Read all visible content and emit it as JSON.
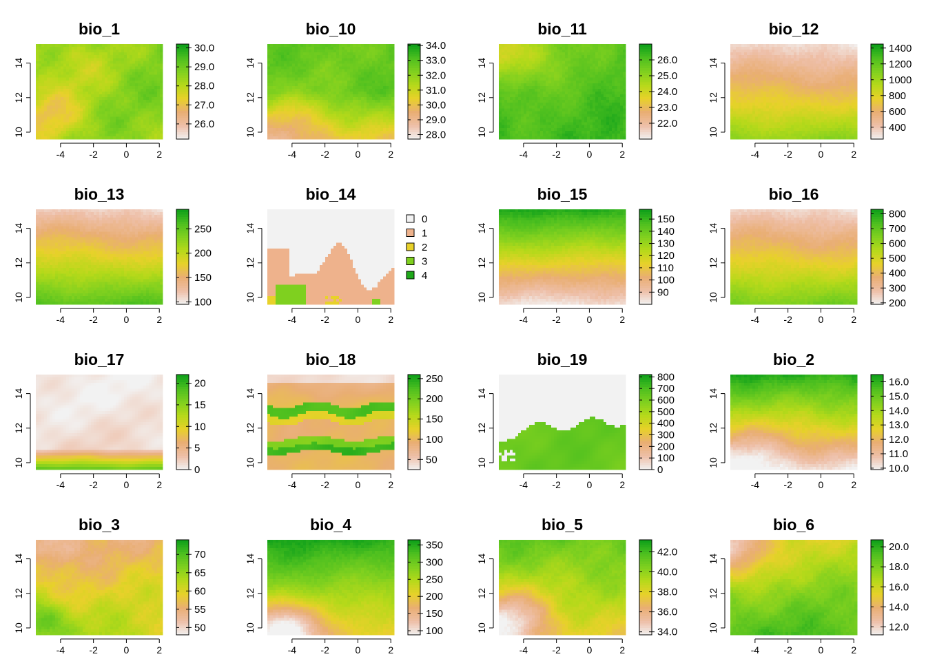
{
  "colors": {
    "ramp": [
      "#F2F2F2",
      "#EEBFA8",
      "#E9AE73",
      "#E8D12A",
      "#B5D91A",
      "#7FD01F",
      "#4CBF1F",
      "#0C9F1A"
    ],
    "frame": "#000000",
    "na": "#F2F2F2"
  },
  "chart_data": [
    {
      "name": "bio_1",
      "type": "heatmap",
      "title": "bio_1",
      "xticks": [
        "-4",
        "-2",
        "0",
        "2"
      ],
      "yticks": [
        "10",
        "12",
        "14"
      ],
      "xlim": [
        -5.5,
        2.2
      ],
      "ylim": [
        9.6,
        15.1
      ],
      "legend": {
        "kind": "continuous",
        "labels": [
          "26.0",
          "27.0",
          "28.0",
          "29.0",
          "30.0"
        ],
        "values": [
          26,
          27,
          28,
          29,
          30
        ],
        "range": [
          25.2,
          30.2
        ]
      },
      "pattern": "patchy, mostly 28-29.5, cooler west/southwest highlands"
    },
    {
      "name": "bio_10",
      "type": "heatmap",
      "title": "bio_10",
      "xticks": [
        "-4",
        "-2",
        "0",
        "2"
      ],
      "yticks": [
        "10",
        "12",
        "14"
      ],
      "xlim": [
        -5.5,
        2.2
      ],
      "ylim": [
        9.6,
        15.1
      ],
      "legend": {
        "kind": "continuous",
        "labels": [
          "28.0",
          "29.0",
          "30.0",
          "31.0",
          "32.0",
          "33.0",
          "34.0"
        ],
        "values": [
          28,
          29,
          30,
          31,
          32,
          33,
          34
        ],
        "range": [
          27.7,
          34.1
        ]
      },
      "pattern": "warm north, cooler south"
    },
    {
      "name": "bio_11",
      "type": "heatmap",
      "title": "bio_11",
      "xticks": [
        "-4",
        "-2",
        "0",
        "2"
      ],
      "yticks": [
        "10",
        "12",
        "14"
      ],
      "xlim": [
        -5.5,
        2.2
      ],
      "ylim": [
        9.6,
        15.1
      ],
      "legend": {
        "kind": "continuous",
        "labels": [
          "22.0",
          "23.0",
          "24.0",
          "25.0",
          "26.0"
        ],
        "values": [
          22,
          23,
          24,
          25,
          26
        ],
        "range": [
          21.0,
          27.0
        ]
      },
      "pattern": "mostly 25-26.5, cooler northwest"
    },
    {
      "name": "bio_12",
      "type": "heatmap",
      "title": "bio_12",
      "xticks": [
        "-4",
        "-2",
        "0",
        "2"
      ],
      "yticks": [
        "10",
        "12",
        "14"
      ],
      "xlim": [
        -5.5,
        2.2
      ],
      "ylim": [
        9.6,
        15.1
      ],
      "legend": {
        "kind": "continuous",
        "labels": [
          "400",
          "600",
          "800",
          "1000",
          "1200",
          "1400"
        ],
        "values": [
          400,
          600,
          800,
          1000,
          1200,
          1400
        ],
        "range": [
          250,
          1450
        ]
      },
      "pattern": "dry north, wet south"
    },
    {
      "name": "bio_13",
      "type": "heatmap",
      "title": "bio_13",
      "xticks": [
        "-4",
        "-2",
        "0",
        "2"
      ],
      "yticks": [
        "10",
        "12",
        "14"
      ],
      "xlim": [
        -5.5,
        2.2
      ],
      "ylim": [
        9.6,
        15.1
      ],
      "legend": {
        "kind": "continuous",
        "labels": [
          "100",
          "150",
          "200",
          "250"
        ],
        "values": [
          100,
          150,
          200,
          250
        ],
        "range": [
          95,
          290
        ]
      },
      "pattern": "low north, high south"
    },
    {
      "name": "bio_14",
      "type": "heatmap",
      "title": "bio_14",
      "xticks": [
        "-4",
        "-2",
        "0",
        "2"
      ],
      "yticks": [
        "10",
        "12",
        "14"
      ],
      "xlim": [
        -5.5,
        2.2
      ],
      "ylim": [
        9.6,
        15.1
      ],
      "legend": {
        "kind": "categorical",
        "labels": [
          "0",
          "1",
          "2",
          "3",
          "4"
        ],
        "colors": [
          "#F2F2F2",
          "#EEB28C",
          "#E8D12A",
          "#7FD01F",
          "#1FA81A"
        ]
      },
      "pattern": "mostly 0; 1 in southwest; 2-4 small patches in far south"
    },
    {
      "name": "bio_15",
      "type": "heatmap",
      "title": "bio_15",
      "xticks": [
        "-4",
        "-2",
        "0",
        "2"
      ],
      "yticks": [
        "10",
        "12",
        "14"
      ],
      "xlim": [
        -5.5,
        2.2
      ],
      "ylim": [
        9.6,
        15.1
      ],
      "legend": {
        "kind": "continuous",
        "labels": [
          "90",
          "100",
          "110",
          "120",
          "130",
          "140",
          "150"
        ],
        "values": [
          90,
          100,
          110,
          120,
          130,
          140,
          150
        ],
        "range": [
          80,
          158
        ]
      },
      "pattern": "high north, low south"
    },
    {
      "name": "bio_16",
      "type": "heatmap",
      "title": "bio_16",
      "xticks": [
        "-4",
        "-2",
        "0",
        "2"
      ],
      "yticks": [
        "10",
        "12",
        "14"
      ],
      "xlim": [
        -5.5,
        2.2
      ],
      "ylim": [
        9.6,
        15.1
      ],
      "legend": {
        "kind": "continuous",
        "labels": [
          "200",
          "300",
          "400",
          "500",
          "600",
          "700",
          "800"
        ],
        "values": [
          200,
          300,
          400,
          500,
          600,
          700,
          800
        ],
        "range": [
          190,
          830
        ]
      },
      "pattern": "low north, high south"
    },
    {
      "name": "bio_17",
      "type": "heatmap",
      "title": "bio_17",
      "xticks": [
        "-4",
        "-2",
        "0",
        "2"
      ],
      "yticks": [
        "10",
        "12",
        "14"
      ],
      "xlim": [
        -5.5,
        2.2
      ],
      "ylim": [
        9.6,
        15.1
      ],
      "legend": {
        "kind": "continuous",
        "labels": [
          "0",
          "5",
          "10",
          "15",
          "20"
        ],
        "values": [
          0,
          5,
          10,
          15,
          20
        ],
        "range": [
          0,
          22
        ]
      },
      "pattern": "near 0 north, rising to ~15-20 in far south"
    },
    {
      "name": "bio_18",
      "type": "heatmap",
      "title": "bio_18",
      "xticks": [
        "-4",
        "-2",
        "0",
        "2"
      ],
      "yticks": [
        "10",
        "12",
        "14"
      ],
      "xlim": [
        -5.5,
        2.2
      ],
      "ylim": [
        9.6,
        15.1
      ],
      "legend": {
        "kind": "continuous",
        "labels": [
          "50",
          "100",
          "150",
          "200",
          "250"
        ],
        "values": [
          50,
          100,
          150,
          200,
          250
        ],
        "range": [
          25,
          260
        ]
      },
      "pattern": "banded: low north, green band ~12.3, orange band, green band ~10.8, orange south"
    },
    {
      "name": "bio_19",
      "type": "heatmap",
      "title": "bio_19",
      "xticks": [
        "-4",
        "-2",
        "0",
        "2"
      ],
      "yticks": [
        "10",
        "12",
        "14"
      ],
      "xlim": [
        -5.5,
        2.2
      ],
      "ylim": [
        9.6,
        15.1
      ],
      "legend": {
        "kind": "continuous",
        "labels": [
          "0",
          "100",
          "200",
          "300",
          "400",
          "500",
          "600",
          "700",
          "800"
        ],
        "values": [
          0,
          100,
          200,
          300,
          400,
          500,
          600,
          700,
          800
        ],
        "range": [
          0,
          820
        ]
      },
      "pattern": "0 in north, ~600-700 south of ~12.5"
    },
    {
      "name": "bio_2",
      "type": "heatmap",
      "title": "bio_2",
      "xticks": [
        "-4",
        "-2",
        "0",
        "2"
      ],
      "yticks": [
        "10",
        "12",
        "14"
      ],
      "xlim": [
        -5.5,
        2.2
      ],
      "ylim": [
        9.6,
        15.1
      ],
      "legend": {
        "kind": "continuous",
        "labels": [
          "10.0",
          "11.0",
          "12.0",
          "13.0",
          "14.0",
          "15.0",
          "16.0"
        ],
        "values": [
          10,
          11,
          12,
          13,
          14,
          15,
          16
        ],
        "range": [
          9.9,
          16.5
        ]
      },
      "pattern": "high north, low south"
    },
    {
      "name": "bio_3",
      "type": "heatmap",
      "title": "bio_3",
      "xticks": [
        "-4",
        "-2",
        "0",
        "2"
      ],
      "yticks": [
        "10",
        "12",
        "14"
      ],
      "xlim": [
        -5.5,
        2.2
      ],
      "ylim": [
        9.6,
        15.1
      ],
      "legend": {
        "kind": "continuous",
        "labels": [
          "50",
          "55",
          "60",
          "65",
          "70"
        ],
        "values": [
          50,
          55,
          60,
          65,
          70
        ],
        "range": [
          48,
          74
        ]
      },
      "pattern": "mostly 53-58, higher south, max southwest"
    },
    {
      "name": "bio_4",
      "type": "heatmap",
      "title": "bio_4",
      "xticks": [
        "-4",
        "-2",
        "0",
        "2"
      ],
      "yticks": [
        "10",
        "12",
        "14"
      ],
      "xlim": [
        -5.5,
        2.2
      ],
      "ylim": [
        9.6,
        15.1
      ],
      "legend": {
        "kind": "continuous",
        "labels": [
          "100",
          "150",
          "200",
          "250",
          "300",
          "350"
        ],
        "values": [
          100,
          150,
          200,
          250,
          300,
          350
        ],
        "range": [
          88,
          365
        ]
      },
      "pattern": "high north, low southwest"
    },
    {
      "name": "bio_5",
      "type": "heatmap",
      "title": "bio_5",
      "xticks": [
        "-4",
        "-2",
        "0",
        "2"
      ],
      "yticks": [
        "10",
        "12",
        "14"
      ],
      "xlim": [
        -5.5,
        2.2
      ],
      "ylim": [
        9.6,
        15.1
      ],
      "legend": {
        "kind": "continuous",
        "labels": [
          "34.0",
          "36.0",
          "38.0",
          "40.0",
          "42.0"
        ],
        "values": [
          34,
          36,
          38,
          40,
          42
        ],
        "range": [
          33.7,
          43.2
        ]
      },
      "pattern": "high north/east, low southwest"
    },
    {
      "name": "bio_6",
      "type": "heatmap",
      "title": "bio_6",
      "xticks": [
        "-4",
        "-2",
        "0",
        "2"
      ],
      "yticks": [
        "10",
        "12",
        "14"
      ],
      "xlim": [
        -5.5,
        2.2
      ],
      "ylim": [
        9.6,
        15.1
      ],
      "legend": {
        "kind": "continuous",
        "labels": [
          "12.0",
          "14.0",
          "16.0",
          "18.0",
          "20.0"
        ],
        "values": [
          12,
          14,
          16,
          18,
          20
        ],
        "range": [
          11.2,
          20.7
        ]
      },
      "pattern": "low northwest, high center-south"
    }
  ]
}
